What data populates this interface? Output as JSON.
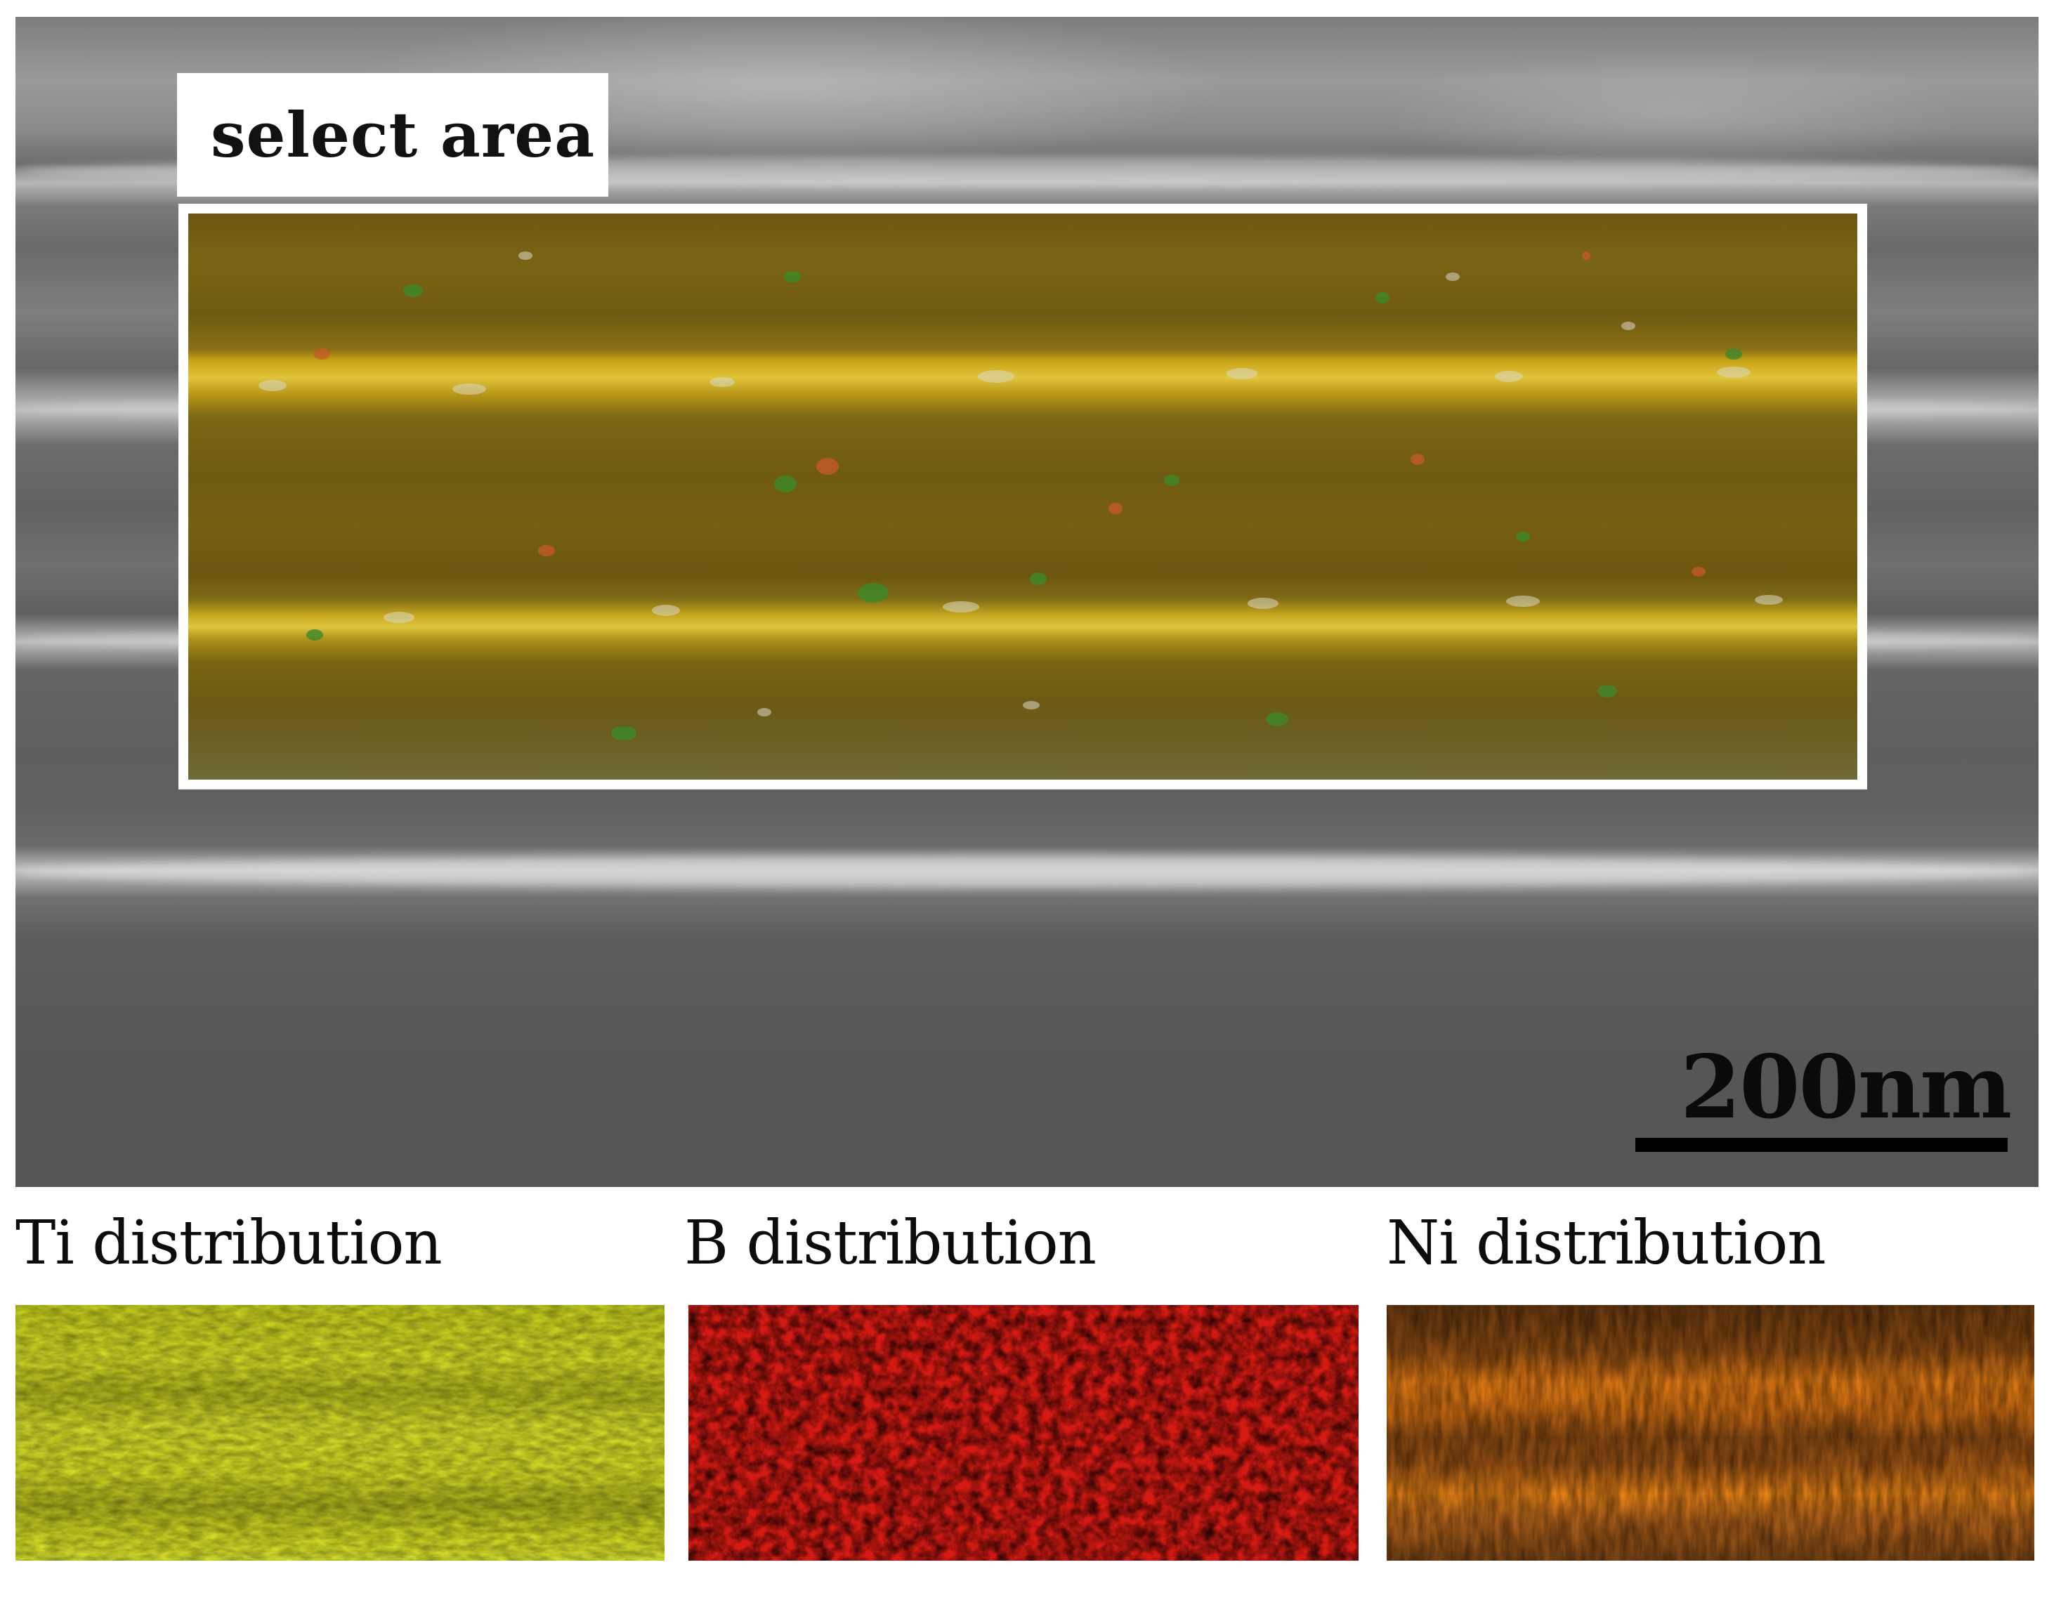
{
  "figure": {
    "select_label": "select area",
    "scale_bar_label": "200nm"
  },
  "maps": [
    {
      "label": "Ti distribution",
      "color": "#d4dd1a"
    },
    {
      "label": "B distribution",
      "color": "#c81410"
    },
    {
      "label": "Ni distribution",
      "color": "#e07a14"
    }
  ]
}
